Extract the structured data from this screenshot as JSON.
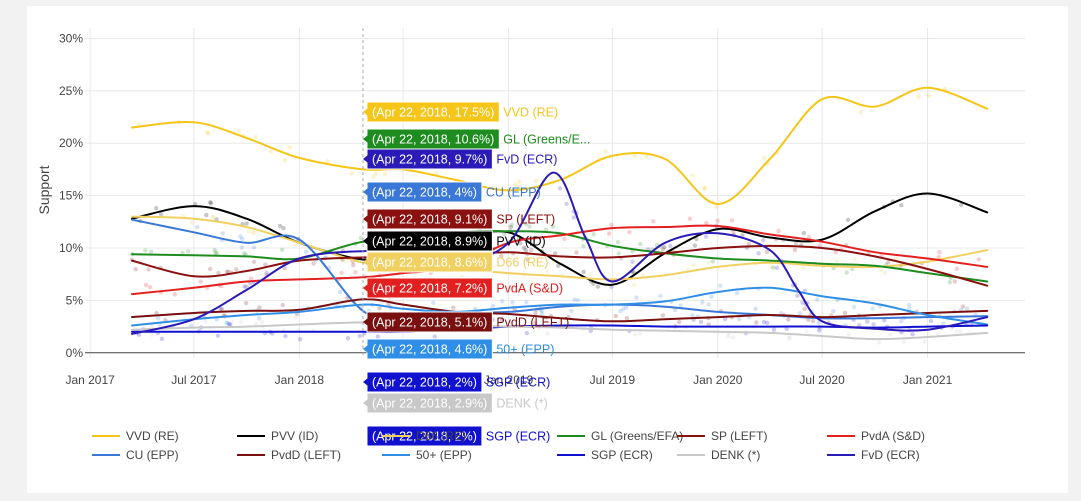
{
  "chart_data": {
    "type": "line",
    "ylabel": "Support",
    "y_ticks": [
      "0%",
      "5%",
      "10%",
      "15%",
      "20%",
      "25%",
      "30%"
    ],
    "y_tick_values": [
      0,
      5,
      10,
      15,
      20,
      25,
      30
    ],
    "ylim": [
      -0.5,
      31
    ],
    "x_ticks": [
      "Jan 2017",
      "Jul 2017",
      "Jan 2018",
      "Jul 2018",
      "Jan 2019",
      "Jul 2019",
      "Jan 2020",
      "Jul 2020",
      "Jan 2021"
    ],
    "x_tick_values": [
      "2017-01-01",
      "2017-07-01",
      "2018-01-01",
      "2018-07-01",
      "2019-01-01",
      "2019-07-01",
      "2020-01-01",
      "2020-07-01",
      "2021-01-01"
    ],
    "xlim": [
      "2016-12-23",
      "2021-06-20"
    ],
    "grid": true,
    "legend_position": "bottom",
    "hover": {
      "date": "Apr 22, 2018",
      "x": "2018-04-22"
    },
    "series": [
      {
        "name": "VVD (RE)",
        "color": "#f5c518",
        "hover_label": "(Apr 22, 2018, 17.5%)",
        "hover_name": "VVD (RE)",
        "x": [
          "2017-03-15",
          "2017-07-01",
          "2017-10-01",
          "2018-01-01",
          "2018-04-22",
          "2018-07-01",
          "2018-10-01",
          "2019-01-01",
          "2019-04-01",
          "2019-07-01",
          "2019-10-01",
          "2020-01-01",
          "2020-04-01",
          "2020-07-01",
          "2020-10-01",
          "2021-01-01",
          "2021-04-15"
        ],
        "y": [
          21.5,
          22,
          20.5,
          18.6,
          17.5,
          17.5,
          16.5,
          15.5,
          16.5,
          18.8,
          18.5,
          14.2,
          18.5,
          24.2,
          23.5,
          25.3,
          23.3
        ]
      },
      {
        "name": "PVV (ID)",
        "color": "#000000",
        "hover_label": "(Apr 22, 2018, 8.9%)",
        "hover_name": "PVV (ID)",
        "x": [
          "2017-03-15",
          "2017-07-01",
          "2017-10-01",
          "2018-01-01",
          "2018-04-22",
          "2018-07-01",
          "2018-10-01",
          "2019-01-01",
          "2019-04-01",
          "2019-07-01",
          "2019-10-01",
          "2020-01-01",
          "2020-04-01",
          "2020-07-01",
          "2020-10-01",
          "2021-01-01",
          "2021-04-15"
        ],
        "y": [
          12.8,
          14,
          12.8,
          10.5,
          8.9,
          9.4,
          10.8,
          11.5,
          8.5,
          6.5,
          9.5,
          11.8,
          11,
          10.8,
          13.5,
          15.2,
          13.4
        ]
      },
      {
        "name": "D66 (RE)",
        "color": "#f0d060",
        "hover_label": "(Apr 22, 2018, 8.6%)",
        "hover_name": "D66 (RE)",
        "x": [
          "2017-03-15",
          "2017-07-01",
          "2017-10-01",
          "2018-01-01",
          "2018-04-22",
          "2018-07-01",
          "2018-10-01",
          "2019-01-01",
          "2019-04-01",
          "2019-07-01",
          "2019-10-01",
          "2020-01-01",
          "2020-04-01",
          "2020-07-01",
          "2020-10-01",
          "2021-01-01",
          "2021-04-15"
        ],
        "y": [
          13,
          12.8,
          12,
          10.5,
          8.6,
          8.3,
          8,
          7.6,
          7.3,
          7,
          7.4,
          8.2,
          8.6,
          8.3,
          8.2,
          8.7,
          9.8
        ]
      },
      {
        "name": "GL (Greens/EFA)",
        "color": "#1e8c1e",
        "hover_label": "(Apr 22, 2018, 10.6%)",
        "hover_name": "GL (Greens/E...",
        "x": [
          "2017-03-15",
          "2017-07-01",
          "2017-10-01",
          "2018-01-01",
          "2018-04-22",
          "2018-07-01",
          "2018-10-01",
          "2019-01-01",
          "2019-04-01",
          "2019-07-01",
          "2019-10-01",
          "2020-01-01",
          "2020-04-01",
          "2020-07-01",
          "2020-10-01",
          "2021-01-01",
          "2021-04-15"
        ],
        "y": [
          9.4,
          9.3,
          9.2,
          9,
          10.6,
          10.4,
          11.5,
          11.6,
          11.4,
          10.2,
          9.5,
          9,
          8.8,
          8.5,
          8.3,
          7.6,
          6.8
        ]
      },
      {
        "name": "SP (LEFT)",
        "color": "#8b1010",
        "hover_label": "(Apr 22, 2018, 9.1%)",
        "hover_name": "SP (LEFT)",
        "x": [
          "2017-03-15",
          "2017-07-01",
          "2017-10-01",
          "2018-01-01",
          "2018-04-22",
          "2018-07-01",
          "2018-10-01",
          "2019-01-01",
          "2019-04-01",
          "2019-07-01",
          "2019-10-01",
          "2020-01-01",
          "2020-04-01",
          "2020-07-01",
          "2020-10-01",
          "2021-01-01",
          "2021-04-15"
        ],
        "y": [
          8.8,
          7.3,
          7.8,
          8.8,
          9.1,
          9.1,
          9.3,
          9.6,
          9.2,
          9.1,
          9.5,
          10,
          10.2,
          10,
          9.2,
          8,
          6.4
        ]
      },
      {
        "name": "PvdA (S&D)",
        "color": "#e32020",
        "hover_label": "(Apr 22, 2018, 7.2%)",
        "hover_name": "PvdA (S&D)",
        "x": [
          "2017-03-15",
          "2017-07-01",
          "2017-10-01",
          "2018-01-01",
          "2018-04-22",
          "2018-07-01",
          "2018-10-01",
          "2019-01-01",
          "2019-04-01",
          "2019-07-01",
          "2019-10-01",
          "2020-01-01",
          "2020-04-01",
          "2020-07-01",
          "2020-10-01",
          "2021-01-01",
          "2021-04-15"
        ],
        "y": [
          5.6,
          6.2,
          6.8,
          7,
          7.2,
          7.6,
          8.2,
          10.5,
          11.2,
          11.9,
          12,
          12.1,
          11.3,
          10.6,
          9.6,
          9,
          8.2
        ]
      },
      {
        "name": "CU (EPP)",
        "color": "#3a78d8",
        "hover_label": "(Apr 22, 2018, 4%)",
        "hover_name": "CU (EPP)",
        "x": [
          "2017-03-15",
          "2017-07-01",
          "2017-10-01",
          "2018-01-01",
          "2018-04-22",
          "2018-07-01",
          "2018-10-01",
          "2019-01-01",
          "2019-04-01",
          "2019-07-01",
          "2019-10-01",
          "2020-01-01",
          "2020-04-01",
          "2020-07-01",
          "2020-10-01",
          "2021-01-01",
          "2021-04-15"
        ],
        "y": [
          12.7,
          11.5,
          10.5,
          10.8,
          4,
          3.6,
          3.8,
          3.9,
          4.4,
          4.6,
          4.4,
          3.9,
          3.6,
          3.3,
          3.3,
          3.4,
          3.5
        ]
      },
      {
        "name": "PvdD (LEFT)",
        "color": "#7a0f0f",
        "hover_label": "(Apr 22, 2018, 5.1%)",
        "hover_name": "PvdD (LEFT)",
        "x": [
          "2017-03-15",
          "2017-07-01",
          "2017-10-01",
          "2018-01-01",
          "2018-04-22",
          "2018-07-01",
          "2018-10-01",
          "2019-01-01",
          "2019-04-01",
          "2019-07-01",
          "2019-10-01",
          "2020-01-01",
          "2020-04-01",
          "2020-07-01",
          "2020-10-01",
          "2021-01-01",
          "2021-04-15"
        ],
        "y": [
          3.4,
          3.8,
          4,
          4.1,
          5.1,
          4.6,
          3.9,
          3.7,
          3.3,
          3,
          3.2,
          3.4,
          3.6,
          3.4,
          3.6,
          3.8,
          4
        ]
      },
      {
        "name": "50+ (EPP)",
        "color": "#2f8fe6",
        "hover_label": "(Apr 22, 2018, 4.6%)",
        "hover_name": "50+ (EPP)",
        "x": [
          "2017-03-15",
          "2017-07-01",
          "2017-10-01",
          "2018-01-01",
          "2018-04-22",
          "2018-07-01",
          "2018-10-01",
          "2019-01-01",
          "2019-04-01",
          "2019-07-01",
          "2019-10-01",
          "2020-01-01",
          "2020-04-01",
          "2020-07-01",
          "2020-10-01",
          "2021-01-01",
          "2021-04-15"
        ],
        "y": [
          2.6,
          3.2,
          3.6,
          3.9,
          4.6,
          4.2,
          3.9,
          4.3,
          4.6,
          4.6,
          4.9,
          5.8,
          6.2,
          5.4,
          4.7,
          3.6,
          2.7
        ]
      },
      {
        "name": "SGP (ECR)",
        "color": "#1010d0",
        "hover_label": "(Apr 22, 2018, 2%)",
        "hover_name": "SGP (ECR)",
        "x": [
          "2017-03-15",
          "2017-07-01",
          "2017-10-01",
          "2018-01-01",
          "2018-04-22",
          "2018-07-01",
          "2018-10-01",
          "2019-01-01",
          "2019-04-01",
          "2019-07-01",
          "2019-10-01",
          "2020-01-01",
          "2020-04-01",
          "2020-07-01",
          "2020-10-01",
          "2021-01-01",
          "2021-04-15"
        ],
        "y": [
          2,
          2,
          2,
          2,
          2,
          2,
          2.2,
          2.5,
          2.6,
          2.6,
          2.5,
          2.5,
          2.5,
          2.5,
          2.4,
          2.5,
          2.6
        ]
      },
      {
        "name": "DENK (*)",
        "color": "#c8c8c8",
        "hover_label": "(Apr 22, 2018, 2.9%)",
        "hover_name": "DENK (*)",
        "x": [
          "2017-03-15",
          "2017-07-01",
          "2017-10-01",
          "2018-01-01",
          "2018-04-22",
          "2018-07-01",
          "2018-10-01",
          "2019-01-01",
          "2019-04-01",
          "2019-07-01",
          "2019-10-01",
          "2020-01-01",
          "2020-04-01",
          "2020-07-01",
          "2020-10-01",
          "2021-01-01",
          "2021-04-15"
        ],
        "y": [
          2.2,
          2.4,
          2.5,
          2.7,
          2.9,
          2.8,
          2.6,
          2.5,
          2.4,
          2.2,
          2.1,
          2,
          1.9,
          1.6,
          1.3,
          1.5,
          1.9
        ]
      },
      {
        "name": "FvD (ECR)",
        "color": "#2a1ab8",
        "hover_label": "(Apr 22, 2018, 9.7%)",
        "hover_name": "FvD (ECR)",
        "x": [
          "2017-03-15",
          "2017-07-01",
          "2017-10-01",
          "2018-01-01",
          "2018-04-22",
          "2018-07-01",
          "2018-10-01",
          "2019-01-01",
          "2019-03-20",
          "2019-05-15",
          "2019-07-01",
          "2019-10-01",
          "2020-01-01",
          "2020-04-01",
          "2020-05-20",
          "2020-07-01",
          "2020-10-01",
          "2021-01-01",
          "2021-04-15"
        ],
        "y": [
          1.8,
          3.2,
          6,
          9,
          9.7,
          9.5,
          8.6,
          10.5,
          17.2,
          11,
          6.8,
          10.5,
          11.4,
          9.8,
          6,
          3,
          2.3,
          2.2,
          3.4
        ]
      }
    ]
  }
}
